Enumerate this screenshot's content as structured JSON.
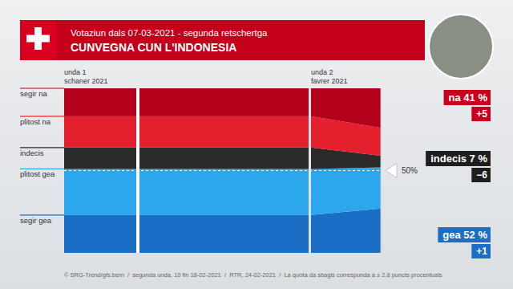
{
  "chart_data": {
    "type": "area",
    "stacked": true,
    "subtitle": "Votaziun dals 07-03-2021 - segunda retschertga",
    "title": "CUNVEGNA CUN L'INDONESIA",
    "categories": [
      "unda 1\nschaner 2021",
      "unda 2\nfavrer 2021"
    ],
    "series": [
      {
        "name": "segir na",
        "color": "#b3001b",
        "values": [
          17,
          24
        ]
      },
      {
        "name": "plitost na",
        "color": "#e4202e",
        "values": [
          19,
          17
        ]
      },
      {
        "name": "indecis",
        "color": "#2a2a2a",
        "values": [
          13,
          7
        ]
      },
      {
        "name": "plitost gea",
        "color": "#2ca6ec",
        "values": [
          28,
          25
        ]
      },
      {
        "name": "segir gea",
        "color": "#1a6ec6",
        "values": [
          23,
          27
        ]
      }
    ],
    "ylim": [
      0,
      100
    ],
    "yticks": [
      {
        "value": 50,
        "label": "50%"
      }
    ],
    "tick_labels": "y",
    "annotations": [
      {
        "label": "na",
        "value": 41,
        "value_label": "41 %",
        "change": {
          "value": 5,
          "label": "+5"
        },
        "color": "#c8001e"
      },
      {
        "label": "indecis",
        "value": 7,
        "value_label": "7 %",
        "change": {
          "value": -6,
          "label": "−6"
        },
        "color": "#1e1e1e"
      },
      {
        "label": "gea",
        "value": 52,
        "value_label": "52 %",
        "change": {
          "value": 1,
          "label": "+1"
        },
        "color": "#1a6ec6"
      }
    ],
    "source": "© SRG-Trend/gfs.bern  /  segunda unda, 10 fin 18-02-2021  /  RTR, 24-02-2021  /  La quota da sbagls correspunda a ± 2,8 puncts procentuals"
  }
}
